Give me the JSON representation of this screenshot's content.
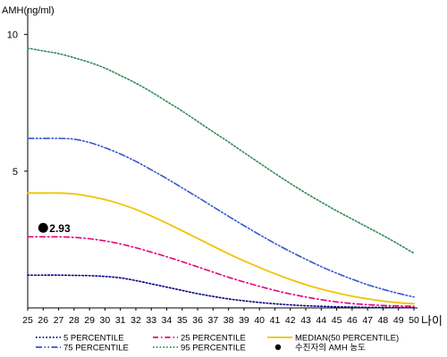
{
  "chart_data": {
    "type": "line",
    "ylabel": "AMH(ng/ml)",
    "xlabel": "나이",
    "xlim": [
      25,
      50
    ],
    "ylim": [
      0,
      11
    ],
    "yticks": [
      5,
      10
    ],
    "x": [
      25,
      26,
      27,
      28,
      29,
      30,
      31,
      32,
      33,
      34,
      35,
      36,
      37,
      38,
      39,
      40,
      41,
      42,
      43,
      44,
      45,
      46,
      47,
      48,
      49,
      50
    ],
    "series": [
      {
        "name": "5 PERCENTILE",
        "color": "#000080",
        "dash": "dot",
        "values": [
          1.2,
          1.2,
          1.2,
          1.19,
          1.18,
          1.15,
          1.1,
          1.0,
          0.88,
          0.76,
          0.64,
          0.52,
          0.42,
          0.33,
          0.26,
          0.2,
          0.15,
          0.11,
          0.08,
          0.06,
          0.04,
          0.03,
          0.02,
          0.02,
          0.01,
          0.01
        ]
      },
      {
        "name": "25 PERCENTILE",
        "color": "#e6007e",
        "dash": "dashdot",
        "values": [
          2.6,
          2.6,
          2.6,
          2.58,
          2.53,
          2.45,
          2.34,
          2.2,
          2.04,
          1.87,
          1.69,
          1.5,
          1.31,
          1.12,
          0.95,
          0.79,
          0.64,
          0.51,
          0.4,
          0.3,
          0.22,
          0.16,
          0.12,
          0.09,
          0.07,
          0.06
        ]
      },
      {
        "name": "MEDIAN(50 PERCENTILE)",
        "color": "#f2c300",
        "dash": "solid",
        "values": [
          4.2,
          4.2,
          4.2,
          4.17,
          4.08,
          3.96,
          3.8,
          3.6,
          3.36,
          3.1,
          2.82,
          2.54,
          2.26,
          1.98,
          1.72,
          1.48,
          1.25,
          1.04,
          0.85,
          0.69,
          0.55,
          0.43,
          0.33,
          0.25,
          0.19,
          0.15
        ]
      },
      {
        "name": "75 PERCENTILE",
        "color": "#3355cc",
        "dash": "dashdotdot",
        "values": [
          6.2,
          6.2,
          6.2,
          6.17,
          6.05,
          5.86,
          5.63,
          5.36,
          5.05,
          4.73,
          4.39,
          4.05,
          3.7,
          3.35,
          3.01,
          2.68,
          2.36,
          2.06,
          1.78,
          1.51,
          1.27,
          1.05,
          0.85,
          0.68,
          0.53,
          0.4
        ]
      },
      {
        "name": "95 PERCENTILE",
        "color": "#2e8b57",
        "dash": "dot",
        "values": [
          9.5,
          9.4,
          9.3,
          9.15,
          8.98,
          8.77,
          8.5,
          8.22,
          7.9,
          7.55,
          7.2,
          6.82,
          6.44,
          6.07,
          5.68,
          5.3,
          4.92,
          4.55,
          4.2,
          3.87,
          3.55,
          3.25,
          2.95,
          2.65,
          2.33,
          2.0
        ]
      }
    ],
    "marker": {
      "name": "수진자의 AMH 농도",
      "x": 26,
      "y": 2.93,
      "label": "2.93",
      "color": "#000000"
    },
    "legend_position": "bottom"
  }
}
